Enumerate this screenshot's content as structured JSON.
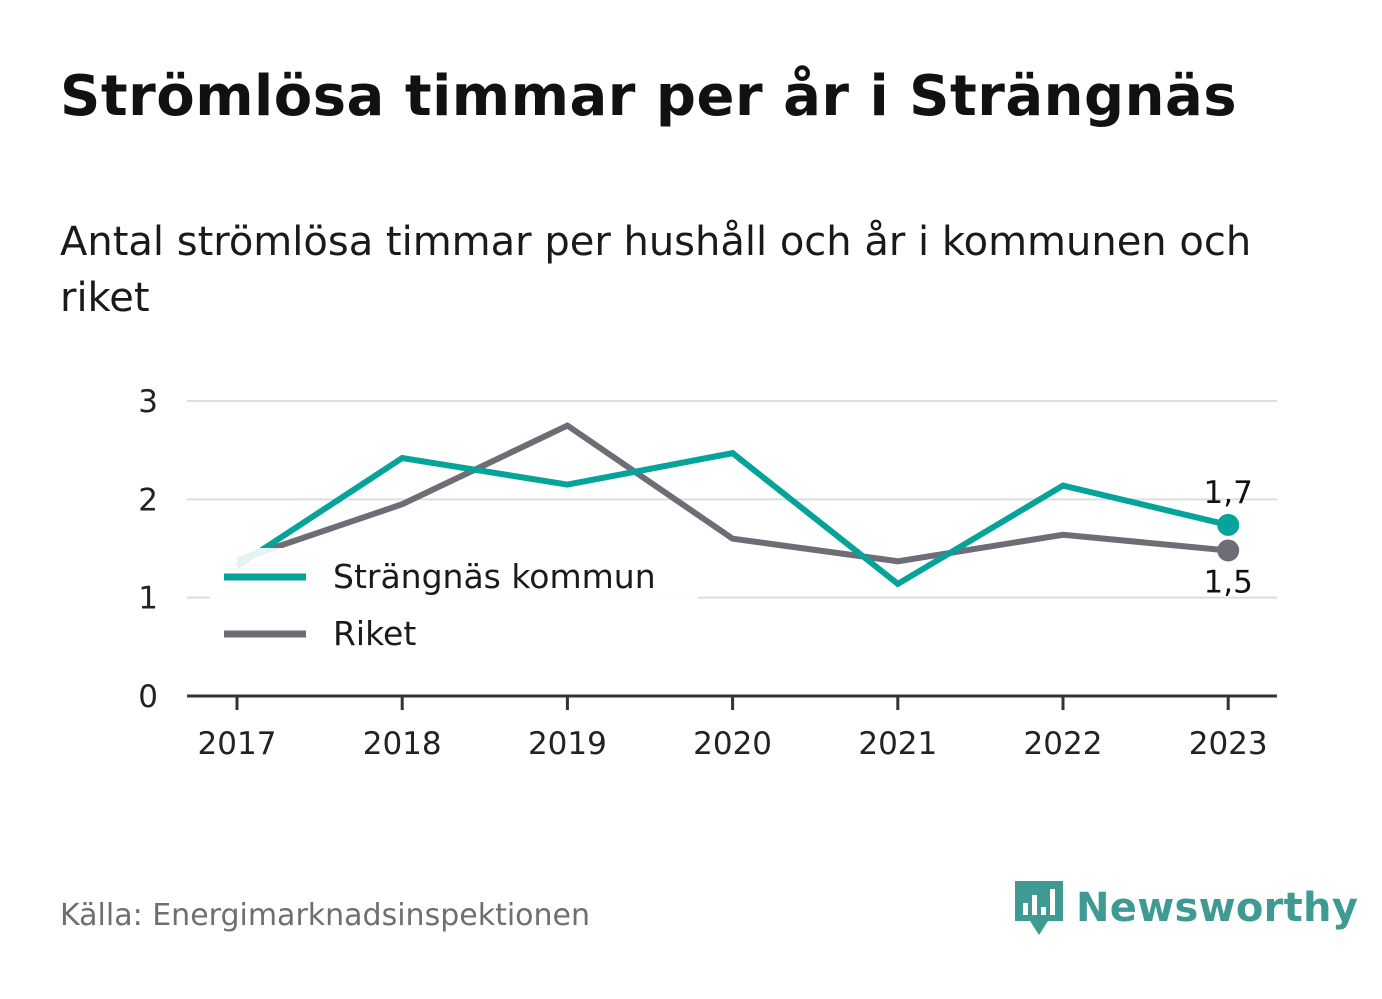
{
  "chart_data": {
    "type": "line",
    "title": "Strömlösa timmar per år i Strängnäs",
    "subtitle": "Antal strömlösa timmar per hushåll och år i kommunen och riket",
    "x": [
      "2017",
      "2018",
      "2019",
      "2020",
      "2021",
      "2022",
      "2023"
    ],
    "ylim": [
      0,
      3
    ],
    "yticks": [
      "0",
      "1",
      "2",
      "3"
    ],
    "grid": true,
    "legend_position": "bottom-left",
    "series": [
      {
        "name": "Strängnäs kommun",
        "color": "#05a39a",
        "values": [
          1.32,
          2.42,
          2.15,
          2.47,
          1.14,
          2.14,
          1.74
        ],
        "end_label": "1,7"
      },
      {
        "name": "Riket",
        "color": "#6e6d75",
        "values": [
          1.38,
          1.95,
          2.75,
          1.6,
          1.37,
          1.64,
          1.48
        ],
        "end_label": "1,5"
      }
    ]
  },
  "source": "Källa: Energimarknadsinspektionen",
  "brand": {
    "name": "Newsworthy",
    "icon": "bar-chart-speech-bubble-icon",
    "color": "#3f9a93"
  }
}
